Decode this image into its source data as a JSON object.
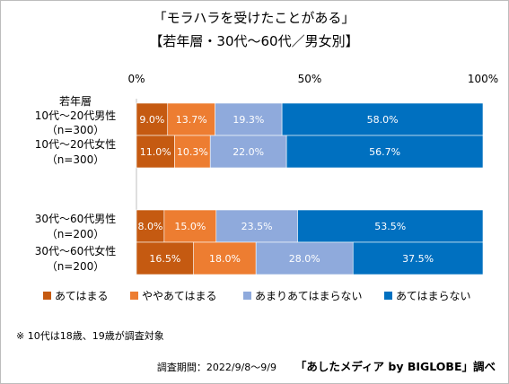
{
  "chart_data": {
    "type": "bar",
    "orientation": "horizontal",
    "stacked": true,
    "percent_stacked": true,
    "title_line1": "「モラハラを受けたことがある」",
    "title_line2": "【若年層・30代～60代／男女別】",
    "xlim": [
      0,
      100
    ],
    "x_ticks": [
      "0%",
      "50%",
      "100%"
    ],
    "grid": false,
    "legend_position": "bottom",
    "groups": [
      {
        "header": "若年層",
        "rows": [
          {
            "label": "10代～20代男性",
            "n": "（n=300）",
            "values": [
              9.0,
              13.7,
              19.3,
              58.0
            ],
            "labels": [
              "9.0%",
              "13.7%",
              "19.3%",
              "58.0%"
            ]
          },
          {
            "label": "10代～20代女性",
            "n": "（n=300）",
            "values": [
              11.0,
              10.3,
              22.0,
              56.7
            ],
            "labels": [
              "11.0%",
              "10.3%",
              "22.0%",
              "56.7%"
            ]
          }
        ]
      },
      {
        "header": "",
        "rows": [
          {
            "label": "30代～60代男性",
            "n": "（n=200）",
            "values": [
              8.0,
              15.0,
              23.5,
              53.5
            ],
            "labels": [
              "8.0%",
              "15.0%",
              "23.5%",
              "53.5%"
            ]
          },
          {
            "label": "30代～60代女性",
            "n": "（n=200）",
            "values": [
              16.5,
              18.0,
              28.0,
              37.5
            ],
            "labels": [
              "16.5%",
              "18.0%",
              "28.0%",
              "37.5%"
            ]
          }
        ]
      }
    ],
    "series": [
      {
        "name": "あてはまる",
        "color": "#c55a11"
      },
      {
        "name": "ややあてはまる",
        "color": "#ed7d31"
      },
      {
        "name": "あまりあてはまらない",
        "color": "#8faadc"
      },
      {
        "name": "あてはまらない",
        "color": "#0070c0"
      }
    ]
  },
  "footnote": "※ 10代は18歳、19歳が調査対象",
  "survey_period": "調査期間：2022/9/8～9/9",
  "source": "「あしたメディア by BIGLOBE」調べ"
}
